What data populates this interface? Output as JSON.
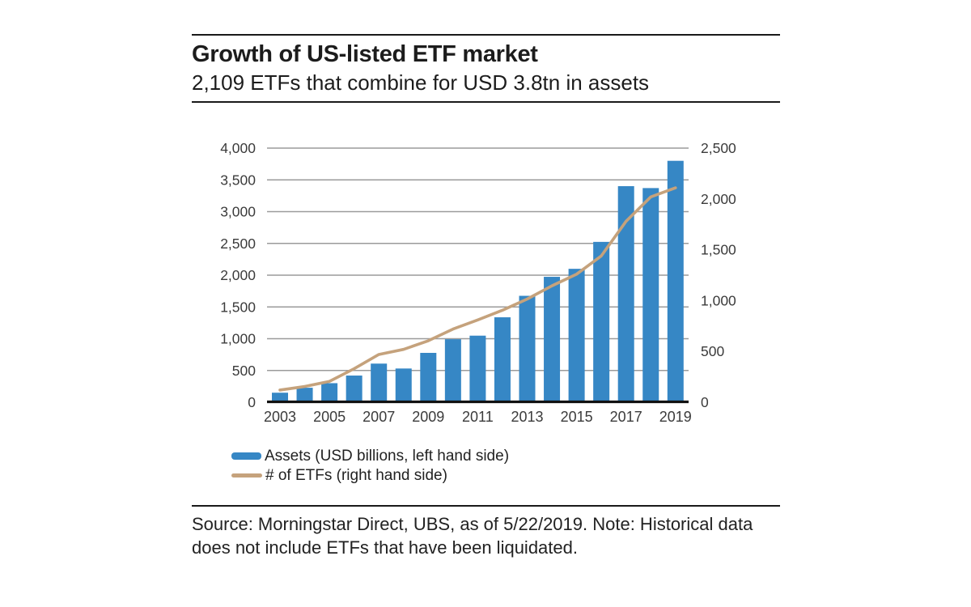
{
  "header": {
    "title": "Growth of US-listed ETF market",
    "subtitle": "2,109 ETFs that combine for USD 3.8tn in assets"
  },
  "chart_data": {
    "type": "bar",
    "title": "Growth of US-listed ETF market",
    "subtitle": "2,109 ETFs that combine for USD 3.8tn in assets",
    "categories": [
      "2003",
      "2004",
      "2005",
      "2006",
      "2007",
      "2008",
      "2009",
      "2010",
      "2011",
      "2012",
      "2013",
      "2014",
      "2015",
      "2016",
      "2017",
      "2018",
      "2019"
    ],
    "series": [
      {
        "name": "Assets (USD billions, left hand side)",
        "type": "bar",
        "axis": "left",
        "color": "#3687C5",
        "values": [
          150,
          228,
          300,
          420,
          608,
          531,
          777,
          992,
          1048,
          1337,
          1675,
          1974,
          2100,
          2524,
          3401,
          3371,
          3800
        ]
      },
      {
        "name": "# of ETFs (right hand side)",
        "type": "line",
        "axis": "right",
        "color": "#C5A27C",
        "values": [
          120,
          155,
          205,
          330,
          470,
          520,
          605,
          720,
          810,
          905,
          1015,
          1145,
          1260,
          1440,
          1780,
          2020,
          2109
        ]
      }
    ],
    "left_axis": {
      "min": 0,
      "max": 4000,
      "step": 500,
      "tick_labels": [
        "0",
        "500",
        "1,000",
        "1,500",
        "2,000",
        "2,500",
        "3,000",
        "3,500",
        "4,000"
      ]
    },
    "right_axis": {
      "min": 0,
      "max": 2500,
      "step": 500,
      "tick_labels": [
        "0",
        "500",
        "1,000",
        "1,500",
        "2,000",
        "2,500"
      ]
    },
    "x_tick_labels": [
      "2003",
      "2005",
      "2007",
      "2009",
      "2011",
      "2013",
      "2015",
      "2017",
      "2019"
    ],
    "grid": "horizontal",
    "legend_position": "bottom-left"
  },
  "legend": {
    "items": [
      {
        "label": "Assets (USD billions, left hand side)",
        "color": "#3687C5",
        "swatch": "bar"
      },
      {
        "label": "# of ETFs (right hand side)",
        "color": "#C5A27C",
        "swatch": "line"
      }
    ]
  },
  "footer": {
    "source_note": "Source: Morningstar Direct, UBS, as of 5/22/2019. Note: Historical data does not include ETFs that have been liquidated."
  },
  "colors": {
    "background": "#FFFFFF",
    "bar": "#3687C5",
    "line": "#C5A27C",
    "grid": "#9B9B9B",
    "axis": "#111111",
    "title_text": "#1C1C1C",
    "tick_text": "#3B3B3B",
    "rule": "#1A1A1A"
  }
}
